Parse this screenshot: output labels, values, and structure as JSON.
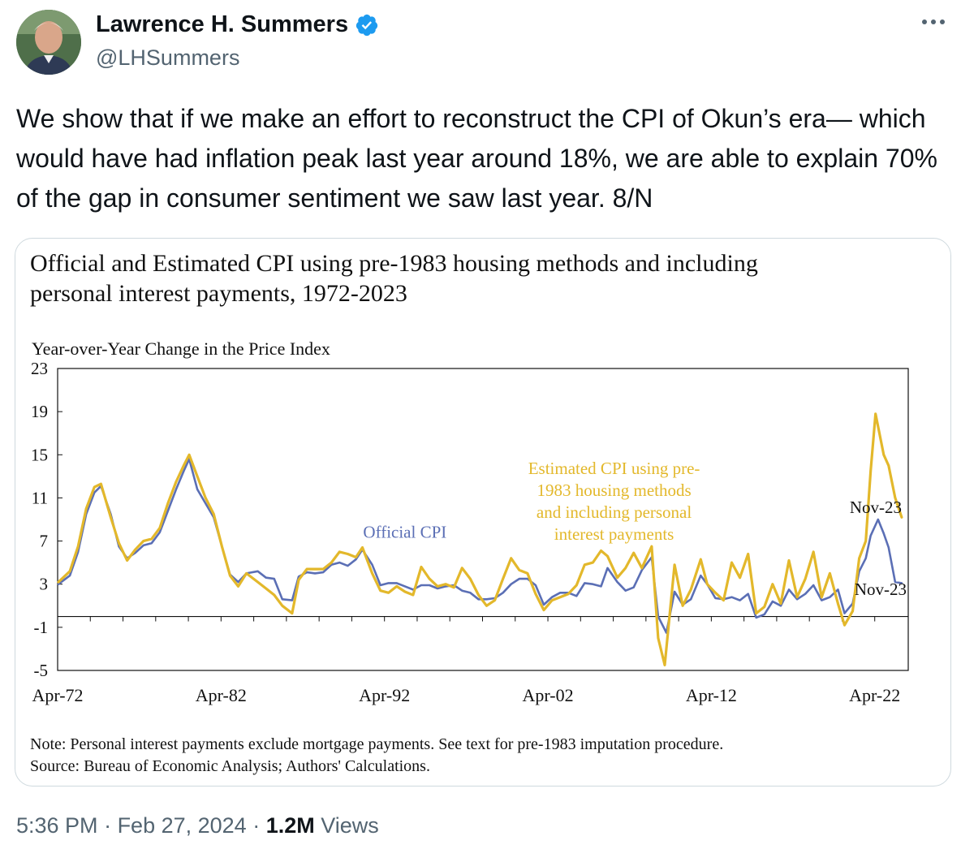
{
  "author": {
    "name": "Lawrence H. Summers",
    "handle": "@LHSummers"
  },
  "tweet": {
    "text": "We show that if we make an effort to reconstruct the CPI of Okun’s era— which would have had inflation peak last year around 18%, we are able to explain 70% of the gap in consumer sentiment we saw last year. 8/N"
  },
  "meta": {
    "time": "5:36 PM",
    "sep1": " · ",
    "date": "Feb 27, 2024",
    "sep2": " · ",
    "views_count": "1.2M",
    "views_label": " Views"
  },
  "chart_data": {
    "type": "line",
    "title": "Official and Estimated CPI using pre-1983 housing methods and including personal interest payments, 1972-2023",
    "ylabel": "Year-over-Year Change in the Price Index",
    "xlabel": "",
    "ylim": [
      -5,
      23
    ],
    "yticks": [
      "23",
      "19",
      "15",
      "11",
      "7",
      "3",
      "-1",
      "-5"
    ],
    "xticks": [
      "Apr-72",
      "Apr-82",
      "Apr-92",
      "Apr-02",
      "Apr-12",
      "Apr-22"
    ],
    "grid": false,
    "annotations": {
      "official_label": "Official CPI",
      "estimated_label": "Estimated CPI using pre-1983 housing methods and including personal interest payments",
      "estimated_lines": [
        "Estimated CPI using pre-",
        "1983 housing methods",
        "and including  personal",
        "interest payments"
      ],
      "end_label_estimated": "Nov-23",
      "end_label_official": "Nov-23"
    },
    "series": [
      {
        "name": "Official CPI",
        "color": "#5b6fb5",
        "x": [
          1972.3,
          1973.0,
          1973.5,
          1974.0,
          1974.5,
          1974.9,
          1975.5,
          1976.0,
          1976.5,
          1977.0,
          1977.5,
          1978.0,
          1978.5,
          1979.0,
          1979.5,
          1980.0,
          1980.3,
          1980.8,
          1981.3,
          1981.8,
          1982.3,
          1982.8,
          1983.3,
          1983.8,
          1984.5,
          1985.0,
          1985.5,
          1986.0,
          1986.6,
          1987.0,
          1987.5,
          1988.0,
          1988.5,
          1989.0,
          1989.5,
          1990.0,
          1990.5,
          1990.9,
          1991.5,
          1992.0,
          1992.5,
          1993.0,
          1993.5,
          1994.0,
          1994.5,
          1995.0,
          1995.5,
          1996.0,
          1996.5,
          1997.0,
          1997.5,
          1998.0,
          1998.5,
          1999.0,
          1999.5,
          2000.0,
          2000.5,
          2001.0,
          2001.5,
          2002.0,
          2002.5,
          2003.0,
          2003.5,
          2004.0,
          2004.5,
          2005.0,
          2005.5,
          2005.9,
          2006.5,
          2007.0,
          2007.5,
          2008.0,
          2008.6,
          2009.0,
          2009.5,
          2010.0,
          2010.5,
          2011.0,
          2011.6,
          2012.0,
          2012.5,
          2013.0,
          2013.5,
          2014.0,
          2014.5,
          2015.0,
          2015.5,
          2016.0,
          2016.5,
          2017.0,
          2017.5,
          2018.0,
          2018.5,
          2019.0,
          2019.5,
          2020.0,
          2020.4,
          2020.9,
          2021.3,
          2021.7,
          2022.0,
          2022.45,
          2022.8,
          2023.1,
          2023.5,
          2023.9
        ],
        "values": [
          3.0,
          3.8,
          6.0,
          9.5,
          11.5,
          12.1,
          9.5,
          6.5,
          5.4,
          5.9,
          6.6,
          6.8,
          7.8,
          9.8,
          11.8,
          13.6,
          14.6,
          11.8,
          10.5,
          9.2,
          6.5,
          3.9,
          3.2,
          4.0,
          4.2,
          3.6,
          3.5,
          1.6,
          1.5,
          3.7,
          4.1,
          4.0,
          4.1,
          4.8,
          5.0,
          4.7,
          5.3,
          6.2,
          4.8,
          2.9,
          3.1,
          3.1,
          2.8,
          2.5,
          2.9,
          2.9,
          2.6,
          2.8,
          2.9,
          2.4,
          2.2,
          1.6,
          1.6,
          1.7,
          2.2,
          3.0,
          3.5,
          3.5,
          2.9,
          1.1,
          1.8,
          2.2,
          2.2,
          1.9,
          3.1,
          3.0,
          2.8,
          4.5,
          3.2,
          2.4,
          2.7,
          4.3,
          5.5,
          0.0,
          -1.5,
          2.3,
          1.1,
          1.6,
          3.8,
          3.0,
          1.7,
          1.6,
          1.8,
          1.5,
          2.1,
          -0.1,
          0.2,
          1.4,
          1.0,
          2.5,
          1.6,
          2.1,
          2.9,
          1.5,
          1.8,
          2.5,
          0.3,
          1.2,
          4.2,
          5.4,
          7.5,
          9.0,
          7.7,
          6.4,
          3.2,
          3.1
        ]
      },
      {
        "name": "Estimated CPI using pre-1983 housing methods and including personal interest payments",
        "color": "#e3b82b",
        "x": [
          1972.3,
          1973.0,
          1973.5,
          1974.0,
          1974.5,
          1974.9,
          1975.5,
          1976.0,
          1976.5,
          1977.0,
          1977.5,
          1978.0,
          1978.5,
          1979.0,
          1979.5,
          1980.0,
          1980.3,
          1980.8,
          1981.3,
          1981.8,
          1982.3,
          1982.8,
          1983.3,
          1983.8,
          1984.5,
          1985.0,
          1985.5,
          1986.0,
          1986.6,
          1987.0,
          1987.5,
          1988.0,
          1988.5,
          1989.0,
          1989.5,
          1990.0,
          1990.5,
          1990.9,
          1991.5,
          1992.0,
          1992.5,
          1993.0,
          1993.5,
          1994.0,
          1994.5,
          1995.0,
          1995.5,
          1996.0,
          1996.5,
          1997.0,
          1997.5,
          1998.0,
          1998.5,
          1999.0,
          1999.5,
          2000.0,
          2000.5,
          2001.0,
          2001.5,
          2002.0,
          2002.5,
          2003.0,
          2003.5,
          2004.0,
          2004.5,
          2005.0,
          2005.5,
          2005.9,
          2006.5,
          2007.0,
          2007.5,
          2008.0,
          2008.6,
          2009.0,
          2009.4,
          2010.0,
          2010.5,
          2011.0,
          2011.6,
          2012.0,
          2012.5,
          2013.0,
          2013.5,
          2014.0,
          2014.5,
          2015.0,
          2015.5,
          2016.0,
          2016.5,
          2017.0,
          2017.5,
          2018.0,
          2018.5,
          2019.0,
          2019.5,
          2020.0,
          2020.4,
          2020.9,
          2021.3,
          2021.7,
          2022.0,
          2022.3,
          2022.8,
          2023.1,
          2023.5,
          2023.9
        ],
        "values": [
          3.2,
          4.2,
          6.5,
          10.0,
          12.0,
          12.3,
          9.2,
          6.8,
          5.2,
          6.2,
          7.0,
          7.2,
          8.2,
          10.5,
          12.5,
          14.1,
          15.0,
          13.0,
          11.0,
          9.5,
          6.5,
          3.8,
          2.8,
          4.0,
          3.2,
          2.6,
          2.0,
          1.0,
          0.3,
          3.4,
          4.4,
          4.4,
          4.4,
          5.0,
          6.0,
          5.8,
          5.5,
          6.4,
          4.0,
          2.4,
          2.2,
          2.8,
          2.3,
          2.0,
          4.6,
          3.5,
          2.8,
          3.0,
          2.7,
          4.5,
          3.5,
          2.0,
          1.0,
          1.5,
          3.5,
          5.4,
          4.3,
          4.0,
          2.1,
          0.6,
          1.5,
          1.8,
          2.1,
          2.9,
          4.8,
          5.0,
          6.1,
          5.6,
          3.6,
          4.5,
          5.9,
          4.5,
          6.5,
          -2.0,
          -4.5,
          4.8,
          1.0,
          2.5,
          5.3,
          3.0,
          2.2,
          1.5,
          5.0,
          3.6,
          5.8,
          0.3,
          0.9,
          3.0,
          1.2,
          5.2,
          1.8,
          3.5,
          6.0,
          1.8,
          4.0,
          1.2,
          -0.8,
          0.5,
          5.4,
          7.0,
          13.5,
          18.8,
          15.0,
          14.0,
          11.0,
          9.2
        ]
      }
    ]
  },
  "chart_note": {
    "note": "Note: Personal interest payments exclude mortgage payments. See text for pre-1983 imputation procedure.",
    "source": "Source: Bureau of Economic Analysis; Authors' Calculations."
  }
}
